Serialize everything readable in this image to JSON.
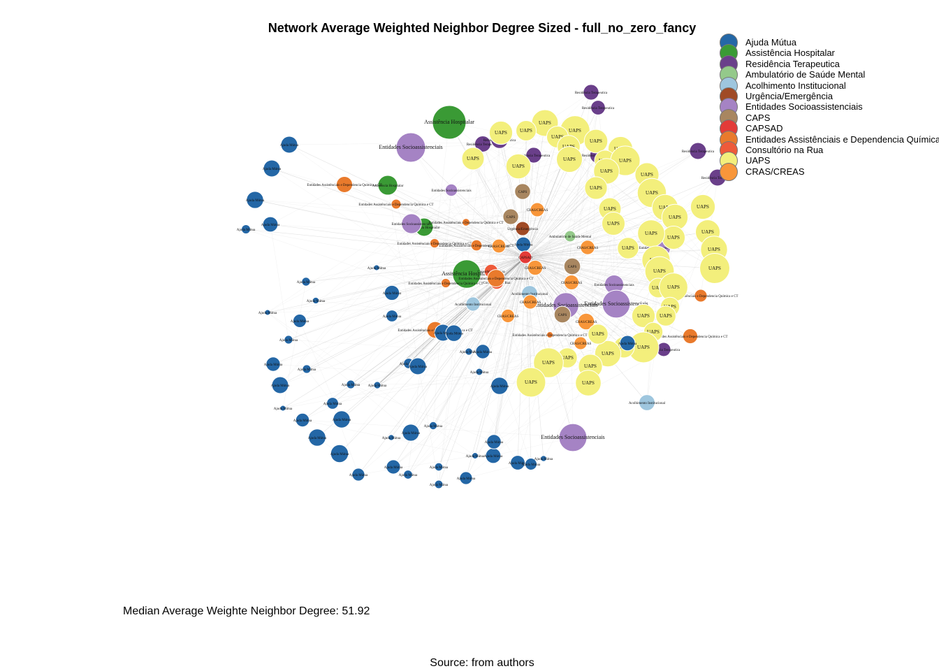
{
  "title": "Network Average Weighted Neighbor Degree Sized - full_no_zero_fancy",
  "median_text": "Median Average Weighte Neighbor Degree: 51.92",
  "source_text": "Source: from authors",
  "legend": [
    {
      "label": "Ajuda Mútua",
      "color": "#2467a6"
    },
    {
      "label": "Assistência Hospitalar",
      "color": "#3a9a35"
    },
    {
      "label": "Residência Terapeutica",
      "color": "#6a3f8a"
    },
    {
      "label": "Ambulatório de Saúde Mental",
      "color": "#94c98a"
    },
    {
      "label": "Acolhimento Institucional",
      "color": "#9ec6de"
    },
    {
      "label": "Urgência/Emergência",
      "color": "#a04a25"
    },
    {
      "label": "Entidades Socioassistenciais",
      "color": "#a583c4"
    },
    {
      "label": "CAPS",
      "color": "#a88660"
    },
    {
      "label": "CAPSAD",
      "color": "#e33b38"
    },
    {
      "label": "Entidades Assistênciais e Dependencia Química",
      "color": "#e97a2c"
    },
    {
      "label": "Consultório na Rua",
      "color": "#ee5a3a"
    },
    {
      "label": "UAPS",
      "color": "#f3ef7c"
    },
    {
      "label": "CRAS/CREAS",
      "color": "#f8963a"
    }
  ],
  "graph": {
    "center": {
      "category": "CAPSAD",
      "label": "CAPSAD"
    },
    "nodes": [
      {
        "label": "Assistência Hospitalar",
        "category": "Assistência Hospitalar"
      },
      {
        "label": "Entidades Socioassistenciais",
        "category": "Entidades Socioassistenciais"
      },
      {
        "label": "Assistência Hospitalar",
        "category": "Assistência Hospitalar"
      },
      {
        "label": "Assistência Hospitalar",
        "category": "Assistência Hospitalar"
      },
      {
        "label": "Assistência Hospitalar",
        "category": "Assistência Hospitalar"
      },
      {
        "label": "Residência Terapeutica",
        "category": "Residência Terapeutica"
      },
      {
        "label": "Residência Terapeutica",
        "category": "Residência Terapeutica"
      },
      {
        "label": "Residência Terapeutica",
        "category": "Residência Terapeutica"
      },
      {
        "label": "Residência Terapeutica",
        "category": "Residência Terapeutica"
      },
      {
        "label": "Residência Terapeutica",
        "category": "Residência Terapeutica"
      },
      {
        "label": "Residência Terapeutica",
        "category": "Residência Terapeutica"
      },
      {
        "label": "Residência Terapeutica",
        "category": "Residência Terapeutica"
      },
      {
        "label": "Residência Terapeutica",
        "category": "Residência Terapeutica"
      },
      {
        "label": "Residência Terapeutica",
        "category": "Residência Terapeutica"
      },
      {
        "label": "Ambulatório de Saúde Mental",
        "category": "Ambulatório de Saúde Mental"
      },
      {
        "label": "Acolhimento Institucional",
        "category": "Acolhimento Institucional"
      },
      {
        "label": "Acolhimento Institucional",
        "category": "Acolhimento Institucional"
      },
      {
        "label": "Acolhimento Institucional",
        "category": "Acolhimento Institucional"
      },
      {
        "label": "Urgência/Emergência",
        "category": "Urgência/Emergência"
      },
      {
        "label": "Entidades Socioassistenciais",
        "category": "Entidades Socioassistenciais"
      },
      {
        "label": "Entidades Socioassistenciais",
        "category": "Entidades Socioassistenciais"
      },
      {
        "label": "Entidades Socioassistenciais",
        "category": "Entidades Socioassistenciais"
      },
      {
        "label": "Entidades Socioassistenciais",
        "category": "Entidades Socioassistenciais"
      },
      {
        "label": "Entidades Socioassistenciais",
        "category": "Entidades Socioassistenciais"
      },
      {
        "label": "Entidades Socioassistenciais",
        "category": "Entidades Socioassistenciais"
      },
      {
        "label": "Entidades Socioassistenciais",
        "category": "Entidades Socioassistenciais"
      },
      {
        "label": "CAPS",
        "category": "CAPS"
      },
      {
        "label": "CAPS",
        "category": "CAPS"
      },
      {
        "label": "CAPS",
        "category": "CAPS"
      },
      {
        "label": "CAPS",
        "category": "CAPS"
      },
      {
        "label": "Consultório na Rua",
        "category": "Consultório na Rua"
      },
      {
        "label": "Consultório na Rua",
        "category": "Consultório na Rua"
      },
      {
        "label": "Entidades Assistênciais e Dependencia Química e CT",
        "category": "Entidades Assistênciais e Dependencia Química"
      },
      {
        "label": "Entidades Assistênciais e Dependencia Química e CT",
        "category": "Entidades Assistênciais e Dependencia Química"
      },
      {
        "label": "Entidades Assistênciais e Dependencia Química e CT",
        "category": "Entidades Assistênciais e Dependencia Química"
      },
      {
        "label": "Entidades Assistênciais e Dependencia Química e CT",
        "category": "Entidades Assistênciais e Dependencia Química"
      },
      {
        "label": "Entidades Assistênciais e Dependencia Química e CT",
        "category": "Entidades Assistênciais e Dependencia Química"
      },
      {
        "label": "Entidades Assistênciais e Dependencia Química e CT",
        "category": "Entidades Assistênciais e Dependencia Química"
      },
      {
        "label": "Entidades Assistênciais e Dependencia Química e CT",
        "category": "Entidades Assistênciais e Dependencia Química"
      },
      {
        "label": "Entidades Assistênciais e Dependencia Química e CT",
        "category": "Entidades Assistênciais e Dependencia Química"
      },
      {
        "label": "Entidades Assistênciais e Dependencia Química e CT",
        "category": "Entidades Assistênciais e Dependencia Química"
      },
      {
        "label": "Entidades Assistênciais e Dependencia Química e CT",
        "category": "Entidades Assistênciais e Dependencia Química"
      },
      {
        "label": "Entidades Assistênciais e Dependencia Química e CT",
        "category": "Entidades Assistênciais e Dependencia Química"
      },
      {
        "label": "CRAS/CREAS",
        "category": "CRAS/CREAS"
      },
      {
        "label": "CRAS/CREAS",
        "category": "CRAS/CREAS"
      },
      {
        "label": "CRAS/CREAS",
        "category": "CRAS/CREAS"
      },
      {
        "label": "CRAS/CREAS",
        "category": "CRAS/CREAS"
      },
      {
        "label": "CRAS/CREAS",
        "category": "CRAS/CREAS"
      },
      {
        "label": "CRAS/CREAS",
        "category": "CRAS/CREAS"
      },
      {
        "label": "CRAS/CREAS",
        "category": "CRAS/CREAS"
      },
      {
        "label": "CRAS/CREAS",
        "category": "CRAS/CREAS"
      },
      {
        "label": "CRAS/CREAS",
        "category": "CRAS/CREAS"
      },
      {
        "label": "UAPS",
        "category": "UAPS"
      },
      {
        "label": "UAPS",
        "category": "UAPS"
      },
      {
        "label": "UAPS",
        "category": "UAPS"
      },
      {
        "label": "UAPS",
        "category": "UAPS"
      },
      {
        "label": "UAPS",
        "category": "UAPS"
      },
      {
        "label": "UAPS",
        "category": "UAPS"
      },
      {
        "label": "UAPS",
        "category": "UAPS"
      },
      {
        "label": "UAPS",
        "category": "UAPS"
      },
      {
        "label": "UAPS",
        "category": "UAPS"
      },
      {
        "label": "UAPS",
        "category": "UAPS"
      },
      {
        "label": "UAPS",
        "category": "UAPS"
      },
      {
        "label": "UAPS",
        "category": "UAPS"
      },
      {
        "label": "UAPS",
        "category": "UAPS"
      },
      {
        "label": "UAPS",
        "category": "UAPS"
      },
      {
        "label": "UAPS",
        "category": "UAPS"
      },
      {
        "label": "UAPS",
        "category": "UAPS"
      },
      {
        "label": "UAPS",
        "category": "UAPS"
      },
      {
        "label": "UAPS",
        "category": "UAPS"
      },
      {
        "label": "UAPS",
        "category": "UAPS"
      },
      {
        "label": "UAPS",
        "category": "UAPS"
      },
      {
        "label": "UAPS",
        "category": "UAPS"
      },
      {
        "label": "UAPS",
        "category": "UAPS"
      },
      {
        "label": "UAPS",
        "category": "UAPS"
      },
      {
        "label": "UAPS",
        "category": "UAPS"
      },
      {
        "label": "UAPS",
        "category": "UAPS"
      },
      {
        "label": "UAPS",
        "category": "UAPS"
      },
      {
        "label": "UAPS",
        "category": "UAPS"
      },
      {
        "label": "UAPS",
        "category": "UAPS"
      },
      {
        "label": "UAPS",
        "category": "UAPS"
      },
      {
        "label": "UAPS",
        "category": "UAPS"
      },
      {
        "label": "UAPS",
        "category": "UAPS"
      },
      {
        "label": "UAPS",
        "category": "UAPS"
      },
      {
        "label": "UAPS",
        "category": "UAPS"
      },
      {
        "label": "UAPS",
        "category": "UAPS"
      },
      {
        "label": "UAPS",
        "category": "UAPS"
      },
      {
        "label": "UAPS",
        "category": "UAPS"
      },
      {
        "label": "UAPS",
        "category": "UAPS"
      },
      {
        "label": "UAPS",
        "category": "UAPS"
      },
      {
        "label": "UAPS",
        "category": "UAPS"
      },
      {
        "label": "UAPS",
        "category": "UAPS"
      },
      {
        "label": "UAPS",
        "category": "UAPS"
      },
      {
        "label": "UAPS",
        "category": "UAPS"
      },
      {
        "label": "UAPS",
        "category": "UAPS"
      },
      {
        "label": "UAPS",
        "category": "UAPS"
      },
      {
        "label": "UAPS",
        "category": "UAPS"
      },
      {
        "label": "Ajuda Mútua",
        "category": "Ajuda Mútua"
      },
      {
        "label": "Ajuda Mútua",
        "category": "Ajuda Mútua"
      },
      {
        "label": "Ajuda Mútua",
        "category": "Ajuda Mútua"
      },
      {
        "label": "Ajuda Mútua",
        "category": "Ajuda Mútua"
      },
      {
        "label": "Ajuda Mútua",
        "category": "Ajuda Mútua"
      },
      {
        "label": "Ajuda Mútua",
        "category": "Ajuda Mútua"
      },
      {
        "label": "Ajuda Mútua",
        "category": "Ajuda Mútua"
      },
      {
        "label": "Ajuda Mútua",
        "category": "Ajuda Mútua"
      },
      {
        "label": "Ajuda Mútua",
        "category": "Ajuda Mútua"
      },
      {
        "label": "Ajuda Mútua",
        "category": "Ajuda Mútua"
      },
      {
        "label": "Ajuda Mútua",
        "category": "Ajuda Mútua"
      },
      {
        "label": "Ajuda Mútua",
        "category": "Ajuda Mútua"
      },
      {
        "label": "Ajuda Mútua",
        "category": "Ajuda Mútua"
      },
      {
        "label": "Ajuda Mútua",
        "category": "Ajuda Mútua"
      },
      {
        "label": "Ajuda Mútua",
        "category": "Ajuda Mútua"
      },
      {
        "label": "Ajuda Mútua",
        "category": "Ajuda Mútua"
      },
      {
        "label": "Ajuda Mútua",
        "category": "Ajuda Mútua"
      },
      {
        "label": "Ajuda Mútua",
        "category": "Ajuda Mútua"
      },
      {
        "label": "Ajuda Mútua",
        "category": "Ajuda Mútua"
      },
      {
        "label": "Ajuda Mútua",
        "category": "Ajuda Mútua"
      },
      {
        "label": "Ajuda Mútua",
        "category": "Ajuda Mútua"
      },
      {
        "label": "Ajuda Mútua",
        "category": "Ajuda Mútua"
      },
      {
        "label": "Ajuda Mútua",
        "category": "Ajuda Mútua"
      },
      {
        "label": "Ajuda Mútua",
        "category": "Ajuda Mútua"
      },
      {
        "label": "Ajuda Mútua",
        "category": "Ajuda Mútua"
      },
      {
        "label": "Ajuda Mútua",
        "category": "Ajuda Mútua"
      },
      {
        "label": "Ajuda Mútua",
        "category": "Ajuda Mútua"
      },
      {
        "label": "Ajuda Mútua",
        "category": "Ajuda Mútua"
      },
      {
        "label": "Ajuda Mútua",
        "category": "Ajuda Mútua"
      },
      {
        "label": "Ajuda Mútua",
        "category": "Ajuda Mútua"
      },
      {
        "label": "Ajuda Mútua",
        "category": "Ajuda Mútua"
      },
      {
        "label": "Ajuda Mútua",
        "category": "Ajuda Mútua"
      },
      {
        "label": "Ajuda Mútua",
        "category": "Ajuda Mútua"
      },
      {
        "label": "Ajuda Mútua",
        "category": "Ajuda Mútua"
      },
      {
        "label": "Ajuda Mútua",
        "category": "Ajuda Mútua"
      },
      {
        "label": "Ajuda Mútua",
        "category": "Ajuda Mútua"
      },
      {
        "label": "Ajuda Mútua",
        "category": "Ajuda Mútua"
      },
      {
        "label": "Ajuda Mútua",
        "category": "Ajuda Mútua"
      },
      {
        "label": "Ajuda Mútua",
        "category": "Ajuda Mútua"
      },
      {
        "label": "Ajuda Mútua",
        "category": "Ajuda Mútua"
      },
      {
        "label": "Ajuda Mútua",
        "category": "Ajuda Mútua"
      },
      {
        "label": "Ajuda Mútua",
        "category": "Ajuda Mútua"
      },
      {
        "label": "Ajuda Mútua",
        "category": "Ajuda Mútua"
      },
      {
        "label": "Ajuda Mútua",
        "category": "Ajuda Mútua"
      },
      {
        "label": "Ajuda Mútua",
        "category": "Ajuda Mútua"
      },
      {
        "label": "Ajuda Mútua",
        "category": "Ajuda Mútua"
      },
      {
        "label": "Ajuda Mútua",
        "category": "Ajuda Mútua"
      },
      {
        "label": "Ajuda Mútua",
        "category": "Ajuda Mútua"
      },
      {
        "label": "Ajuda Mútua",
        "category": "Ajuda Mútua"
      }
    ]
  }
}
